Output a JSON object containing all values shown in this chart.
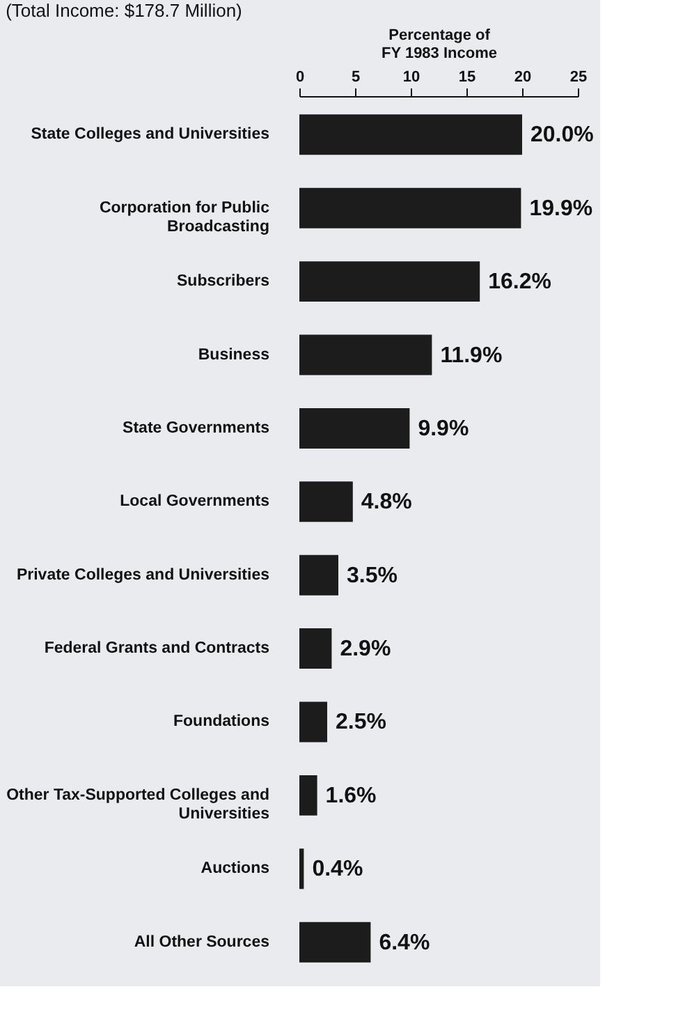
{
  "chart_data": {
    "type": "bar",
    "orientation": "horizontal",
    "title": "(Total Income: $178.7 Million)",
    "xlabel": "Percentage of FY 1983 Income",
    "categories": [
      "State Colleges and Universities",
      "Corporation for Public Broadcasting",
      "Subscribers",
      "Business",
      "State Governments",
      "Local Governments",
      "Private Colleges and Universities",
      "Federal Grants and Contracts",
      "Foundations",
      "Other Tax-Supported Colleges and Universities",
      "Auctions",
      "All Other Sources"
    ],
    "values": [
      20.0,
      19.9,
      16.2,
      11.9,
      9.9,
      4.8,
      3.5,
      2.9,
      2.5,
      1.6,
      0.4,
      6.4
    ],
    "value_labels": [
      "20.0%",
      "19.9%",
      "16.2%",
      "11.9%",
      "9.9%",
      "4.8%",
      "3.5%",
      "2.9%",
      "2.5%",
      "1.6%",
      "0.4%",
      "6.4%"
    ],
    "color": "#1c1c1c",
    "xlim": [
      0,
      25
    ],
    "xticks": [
      0,
      5,
      10,
      15,
      20,
      25
    ]
  }
}
